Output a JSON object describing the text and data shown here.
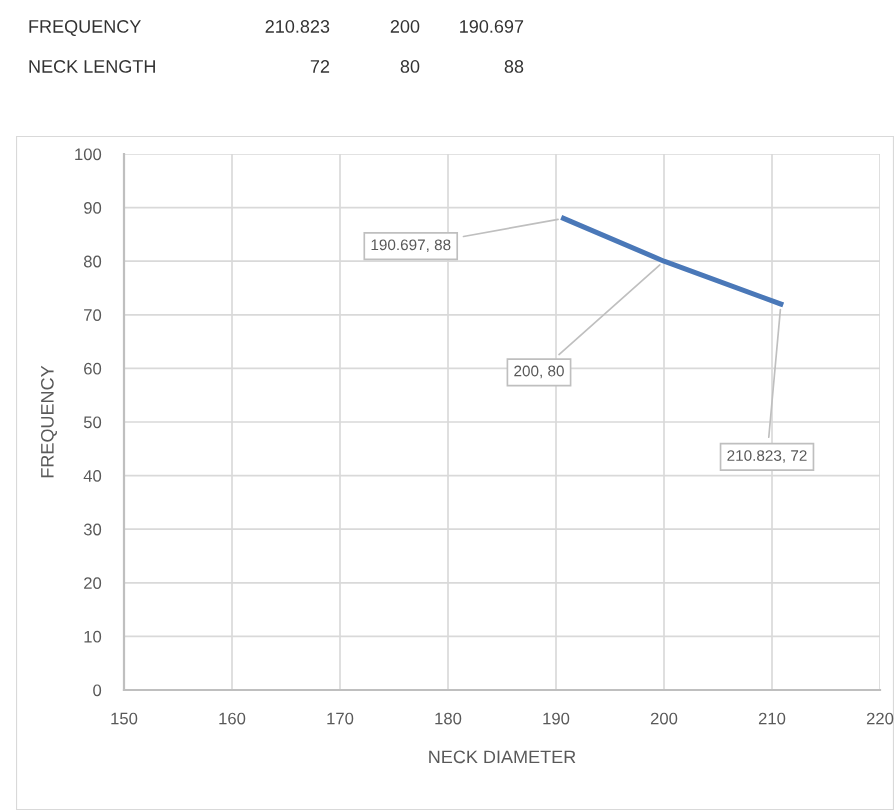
{
  "chart_data": {
    "type": "line",
    "x": [
      210.823,
      200,
      190.697
    ],
    "series": [
      {
        "color": "#4a78b8",
        "values": [
          72,
          80,
          88
        ],
        "value_labels": [
          "210.823, 72",
          "200, 80",
          "190.697, 88"
        ]
      }
    ],
    "xlabel": "NECK DIAMETER",
    "ylabel": "FREQUENCY",
    "xlim": [
      150,
      220
    ],
    "xticks": [
      150,
      160,
      170,
      180,
      190,
      200,
      210,
      220
    ],
    "ylim": [
      0,
      100
    ],
    "yticks": [
      0,
      10,
      20,
      30,
      40,
      50,
      60,
      70,
      80,
      90,
      100
    ],
    "grid": true,
    "marker": "none",
    "line_style": "solid",
    "annotations": [
      "FREQUENCY",
      "210.823",
      "200",
      "190.697",
      "NECK LENGTH",
      "72",
      "80",
      "88"
    ]
  }
}
